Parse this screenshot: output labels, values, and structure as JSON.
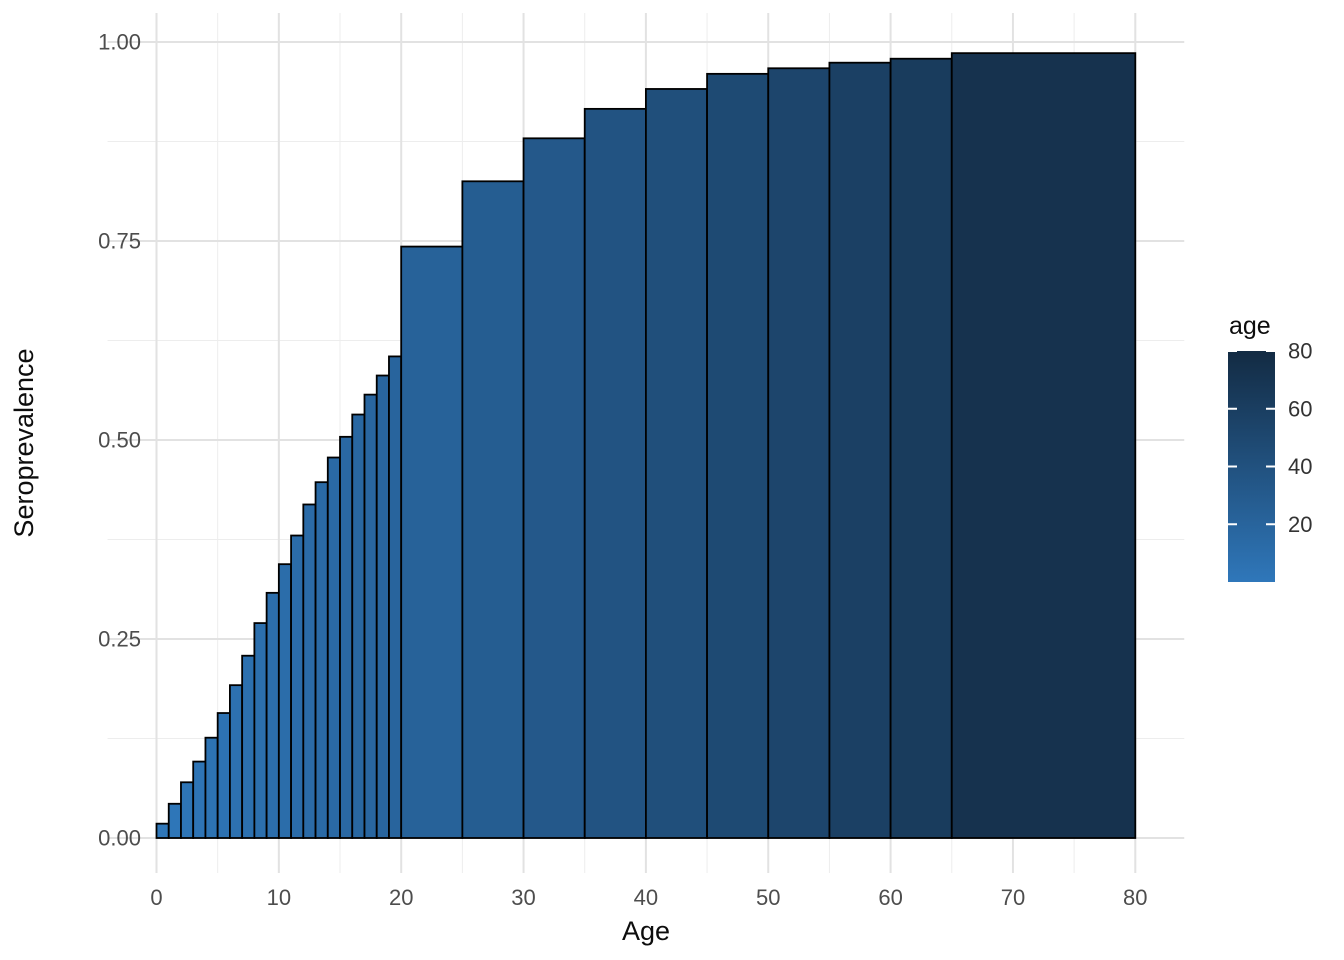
{
  "chart_data": {
    "type": "bar",
    "title": "",
    "xlabel": "Age",
    "ylabel": "Seroprevalence",
    "grid": true,
    "legend_position": "right",
    "x_axis": {
      "range": [
        -4,
        84
      ],
      "ticks": [
        0,
        10,
        20,
        30,
        40,
        50,
        60,
        70,
        80
      ],
      "minor_ticks": [
        5,
        15,
        25,
        35,
        45,
        55,
        65,
        75
      ]
    },
    "y_axis": {
      "range": [
        -0.044,
        1.0365
      ],
      "ticks": [
        0,
        0.25,
        0.5,
        0.75,
        1.0
      ],
      "tick_labels": [
        "0.00",
        "0.25",
        "0.50",
        "0.75",
        "1.00"
      ],
      "minor_ticks": [
        0.125,
        0.375,
        0.625,
        0.875
      ]
    },
    "bins": [
      {
        "from": 0,
        "to": 1,
        "seroprevalence": 0.018
      },
      {
        "from": 1,
        "to": 2,
        "seroprevalence": 0.043
      },
      {
        "from": 2,
        "to": 3,
        "seroprevalence": 0.07
      },
      {
        "from": 3,
        "to": 4,
        "seroprevalence": 0.096
      },
      {
        "from": 4,
        "to": 5,
        "seroprevalence": 0.126
      },
      {
        "from": 5,
        "to": 6,
        "seroprevalence": 0.157
      },
      {
        "from": 6,
        "to": 7,
        "seroprevalence": 0.192
      },
      {
        "from": 7,
        "to": 8,
        "seroprevalence": 0.229
      },
      {
        "from": 8,
        "to": 9,
        "seroprevalence": 0.27
      },
      {
        "from": 9,
        "to": 10,
        "seroprevalence": 0.308
      },
      {
        "from": 10,
        "to": 11,
        "seroprevalence": 0.344
      },
      {
        "from": 11,
        "to": 12,
        "seroprevalence": 0.38
      },
      {
        "from": 12,
        "to": 13,
        "seroprevalence": 0.419
      },
      {
        "from": 13,
        "to": 14,
        "seroprevalence": 0.447
      },
      {
        "from": 14,
        "to": 15,
        "seroprevalence": 0.478
      },
      {
        "from": 15,
        "to": 16,
        "seroprevalence": 0.504
      },
      {
        "from": 16,
        "to": 17,
        "seroprevalence": 0.532
      },
      {
        "from": 17,
        "to": 18,
        "seroprevalence": 0.557
      },
      {
        "from": 18,
        "to": 19,
        "seroprevalence": 0.581
      },
      {
        "from": 19,
        "to": 20,
        "seroprevalence": 0.605
      },
      {
        "from": 20,
        "to": 25,
        "seroprevalence": 0.743
      },
      {
        "from": 25,
        "to": 30,
        "seroprevalence": 0.825
      },
      {
        "from": 30,
        "to": 35,
        "seroprevalence": 0.879
      },
      {
        "from": 35,
        "to": 40,
        "seroprevalence": 0.916
      },
      {
        "from": 40,
        "to": 45,
        "seroprevalence": 0.941
      },
      {
        "from": 45,
        "to": 50,
        "seroprevalence": 0.96
      },
      {
        "from": 50,
        "to": 55,
        "seroprevalence": 0.967
      },
      {
        "from": 55,
        "to": 60,
        "seroprevalence": 0.974
      },
      {
        "from": 60,
        "to": 65,
        "seroprevalence": 0.979
      },
      {
        "from": 65,
        "to": 80,
        "seroprevalence": 0.986
      }
    ],
    "legend": {
      "title": "age",
      "tick_values": [
        80,
        60,
        40,
        20
      ],
      "domain": [
        0,
        80
      ]
    }
  },
  "colors": {
    "fill_low": "#2f77ba",
    "fill_high": "#132b43",
    "bar_stroke": "#000000",
    "grid_major": "#e2e2e2",
    "grid_minor": "#ededed",
    "tick_label": "#4d4d4d",
    "axis_title": "#0d0d0d",
    "legend_tick": "#ffffff",
    "background": "#ffffff"
  }
}
